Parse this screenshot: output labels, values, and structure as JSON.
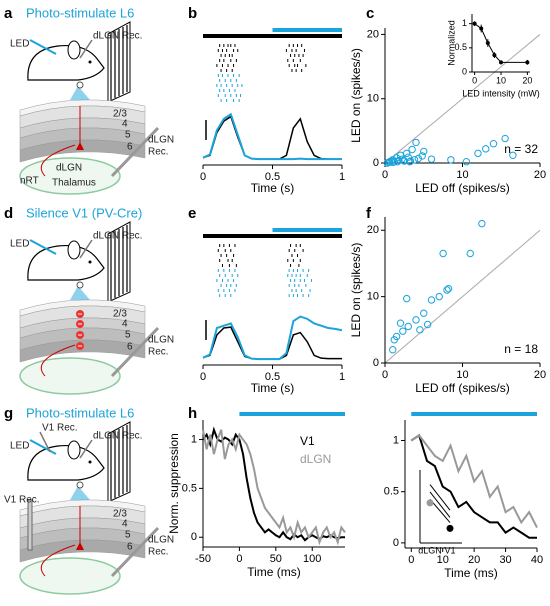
{
  "panels": {
    "a": {
      "label": "a",
      "title": "Photo-stimulate L6",
      "texts": [
        "LED",
        "dLGN Rec.",
        "2/3",
        "4",
        "5",
        "6",
        "dLGN",
        "Rec.",
        "dLGN",
        "nRT",
        "Thalamus"
      ]
    },
    "d": {
      "label": "d",
      "title": "Silence V1 (PV-Cre)",
      "texts": [
        "LED",
        "dLGN Rec.",
        "2/3",
        "4",
        "5",
        "6",
        "dLGN",
        "Rec."
      ]
    },
    "g": {
      "label": "g",
      "title": "Photo-stimulate L6",
      "texts": [
        "V1 Rec.",
        "LED",
        "dLGN Rec.",
        "V1 Rec.",
        "2/3",
        "4",
        "5",
        "6",
        "dLGN",
        "Rec."
      ]
    }
  },
  "chart_data": [
    {
      "type": "psth",
      "panel_label": "b",
      "xlabel": "Time (s)",
      "xlim": [
        0,
        1
      ],
      "xticks": [
        0,
        0.5,
        1
      ],
      "ylim": [
        0,
        1.05
      ],
      "stimulus": [
        0,
        1
      ],
      "led_on": [
        0.5,
        1
      ],
      "led_color": "#1ba3dc",
      "raster": [
        {
          "color": "#000000",
          "trials": [
            [
              0.12,
              0.15,
              0.18,
              0.2,
              0.23,
              0.62,
              0.65,
              0.68,
              0.71
            ],
            [
              0.11,
              0.14,
              0.17,
              0.22,
              0.25,
              0.6,
              0.64,
              0.67,
              0.73
            ],
            [
              0.13,
              0.16,
              0.19,
              0.21,
              0.63,
              0.66,
              0.69,
              0.72
            ],
            [
              0.12,
              0.15,
              0.2,
              0.24,
              0.61,
              0.65,
              0.7
            ],
            [
              0.1,
              0.14,
              0.18,
              0.22,
              0.62,
              0.66,
              0.68,
              0.74
            ],
            [
              0.13,
              0.17,
              0.21,
              0.64,
              0.67,
              0.71
            ]
          ]
        },
        {
          "color": "#1ba3dc",
          "trials": [
            [
              0.11,
              0.14,
              0.18,
              0.22,
              0.26
            ],
            [
              0.12,
              0.16,
              0.2,
              0.24
            ],
            [
              0.1,
              0.13,
              0.17,
              0.21,
              0.25,
              0.28
            ],
            [
              0.12,
              0.15,
              0.19,
              0.23
            ],
            [
              0.11,
              0.16,
              0.2,
              0.24,
              0.27
            ],
            [
              0.13,
              0.17,
              0.22,
              0.26
            ]
          ]
        }
      ],
      "x": [
        0,
        0.05,
        0.1,
        0.15,
        0.2,
        0.25,
        0.3,
        0.35,
        0.4,
        0.45,
        0.5,
        0.55,
        0.6,
        0.65,
        0.7,
        0.75,
        0.8,
        0.85,
        0.9,
        0.95,
        1
      ],
      "series": [
        {
          "color": "#000000",
          "values": [
            0.05,
            0.1,
            0.6,
            0.85,
            0.95,
            0.5,
            0.1,
            0.03,
            0.02,
            0.02,
            0.02,
            0.02,
            0.1,
            0.7,
            0.9,
            0.4,
            0.1,
            0.03,
            0.02,
            0.02,
            0.02
          ]
        },
        {
          "color": "#1ba3dc",
          "values": [
            0.05,
            0.12,
            0.65,
            0.9,
            1.0,
            0.55,
            0.1,
            0.03,
            0.02,
            0.02,
            0.02,
            0.02,
            0.02,
            0.02,
            0.03,
            0.02,
            0.02,
            0.02,
            0.02,
            0.02,
            0.02
          ]
        }
      ]
    },
    {
      "type": "scatter",
      "panel_label": "c",
      "xlabel": "LED off (spikes/s)",
      "ylabel": "LED on (spikes/s)",
      "xlim": [
        0,
        20
      ],
      "ylim": [
        0,
        21
      ],
      "xticks": [
        0,
        10,
        20
      ],
      "yticks": [
        0,
        10,
        20
      ],
      "color": "#1ba3dc",
      "unity_line": true,
      "annotation": "n = 32",
      "x": [
        0.5,
        0.8,
        1,
        1.2,
        1.5,
        1.8,
        2,
        2.2,
        2.5,
        2.8,
        3,
        3.2,
        3.5,
        3.8,
        4,
        4.3,
        4.8,
        5,
        1,
        1.6,
        2.4,
        3.3,
        0.3,
        0.6,
        8.5,
        10.5,
        12,
        13,
        14,
        15.5,
        16.5,
        6
      ],
      "values": [
        0.1,
        0.3,
        0.5,
        0.2,
        0.8,
        0.4,
        1.2,
        0.6,
        0.3,
        1.5,
        0.9,
        0.2,
        2.1,
        0.5,
        3.2,
        0.7,
        1.1,
        1.8,
        0.1,
        0.2,
        0.4,
        0.3,
        0,
        0.2,
        0.5,
        0.2,
        1.5,
        2.2,
        3,
        3.8,
        1.2,
        0.6
      ]
    },
    {
      "type": "line",
      "xlabel": "LED intensity (mW)",
      "ylabel": "Normalized",
      "xlim": [
        -1,
        21
      ],
      "ylim": [
        0,
        1.2
      ],
      "xticks": [
        0,
        10,
        20
      ],
      "yticks": [
        0,
        0.5,
        1
      ],
      "markers": true,
      "x": [
        0,
        2.5,
        5,
        7.5,
        10,
        20
      ],
      "series": [
        {
          "color": "#000000",
          "values": [
            1,
            0.9,
            0.6,
            0.35,
            0.2,
            0.2
          ],
          "errors": [
            0.05,
            0.08,
            0.08,
            0.06,
            0.04,
            0.05
          ]
        }
      ]
    },
    {
      "type": "psth",
      "panel_label": "e",
      "xlabel": "Time (s)",
      "xlim": [
        0,
        1
      ],
      "xticks": [
        0,
        0.5,
        1
      ],
      "ylim": [
        0,
        1.05
      ],
      "stimulus": [
        0,
        1
      ],
      "led_on": [
        0.5,
        1
      ],
      "led_color": "#1ba3dc",
      "raster": [
        {
          "color": "#000000",
          "trials": [
            [
              0.12,
              0.15,
              0.19,
              0.23,
              0.63,
              0.67,
              0.7
            ],
            [
              0.11,
              0.16,
              0.2,
              0.62,
              0.66,
              0.72
            ],
            [
              0.13,
              0.17,
              0.22,
              0.64,
              0.68
            ],
            [
              0.12,
              0.18,
              0.21,
              0.61,
              0.65,
              0.7
            ],
            [
              0.14,
              0.19,
              0.24,
              0.63,
              0.69
            ]
          ]
        },
        {
          "color": "#1ba3dc",
          "trials": [
            [
              0.11,
              0.15,
              0.19,
              0.23,
              0.62,
              0.65,
              0.68,
              0.72,
              0.76
            ],
            [
              0.12,
              0.16,
              0.21,
              0.25,
              0.61,
              0.64,
              0.67,
              0.7,
              0.75
            ],
            [
              0.1,
              0.14,
              0.18,
              0.22,
              0.63,
              0.66,
              0.7,
              0.73,
              0.78
            ],
            [
              0.13,
              0.17,
              0.2,
              0.24,
              0.62,
              0.66,
              0.69,
              0.74
            ],
            [
              0.11,
              0.15,
              0.19,
              0.23,
              0.64,
              0.67,
              0.71,
              0.77
            ],
            [
              0.12,
              0.16,
              0.2,
              0.62,
              0.65,
              0.68,
              0.72,
              0.76
            ]
          ]
        }
      ],
      "x": [
        0,
        0.05,
        0.1,
        0.15,
        0.2,
        0.25,
        0.3,
        0.35,
        0.4,
        0.45,
        0.5,
        0.55,
        0.6,
        0.65,
        0.7,
        0.75,
        0.8,
        0.85,
        0.9,
        0.95,
        1
      ],
      "series": [
        {
          "color": "#000000",
          "values": [
            0.05,
            0.1,
            0.55,
            0.7,
            0.72,
            0.4,
            0.08,
            0.03,
            0.02,
            0.02,
            0.02,
            0.02,
            0.1,
            0.55,
            0.6,
            0.4,
            0.1,
            0.04,
            0.03,
            0.03,
            0.03
          ]
        },
        {
          "color": "#1ba3dc",
          "values": [
            0.05,
            0.12,
            0.7,
            0.75,
            0.8,
            0.5,
            0.1,
            0.03,
            0.02,
            0.02,
            0.02,
            0.02,
            0.15,
            0.85,
            0.95,
            0.9,
            0.8,
            0.75,
            0.7,
            0.68,
            0.65
          ]
        }
      ]
    },
    {
      "type": "scatter",
      "panel_label": "f",
      "xlabel": "LED off (spikes/s)",
      "ylabel": "LED on (spikes/s)",
      "xlim": [
        0,
        20
      ],
      "ylim": [
        0,
        22
      ],
      "xticks": [
        0,
        10,
        20
      ],
      "yticks": [
        0,
        10,
        20
      ],
      "color": "#1ba3dc",
      "unity_line": true,
      "annotation": "n = 18",
      "x": [
        1,
        1.2,
        1.5,
        2,
        2.3,
        2.8,
        3,
        4,
        4.5,
        5,
        5.5,
        6,
        7,
        7.5,
        8,
        8.2,
        11,
        12.5
      ],
      "values": [
        2,
        3.5,
        4,
        6,
        4.8,
        9.7,
        5.5,
        6.5,
        5,
        7.5,
        5.8,
        9.5,
        10,
        16.5,
        11,
        11.2,
        16.5,
        21
      ]
    },
    {
      "type": "line",
      "panel_label": "h",
      "xlabel": "Time (ms)",
      "ylabel": "Norm. suppression",
      "xlim": [
        -50,
        145
      ],
      "ylim": [
        -0.1,
        1.2
      ],
      "xticks": [
        -50,
        0,
        50,
        100
      ],
      "yticks": [
        0,
        0.5,
        1
      ],
      "led_on": [
        0,
        145
      ],
      "led_color": "#1ba3dc",
      "legend": true,
      "x": [
        -50,
        -45,
        -40,
        -35,
        -30,
        -25,
        -20,
        -15,
        -10,
        -5,
        0,
        5,
        10,
        15,
        20,
        25,
        30,
        35,
        40,
        45,
        50,
        55,
        60,
        65,
        70,
        75,
        80,
        85,
        90,
        95,
        100,
        105,
        110,
        115,
        120,
        125,
        130,
        135,
        140,
        145
      ],
      "series": [
        {
          "name": "V1",
          "color": "#000000",
          "values": [
            1.0,
            1.05,
            0.95,
            1.1,
            1.0,
            0.98,
            1.02,
            1.0,
            0.95,
            1.05,
            1.0,
            0.85,
            0.6,
            0.4,
            0.25,
            0.15,
            0.1,
            0.05,
            0.08,
            0.05,
            0.02,
            0,
            0.05,
            0.0,
            -0.02,
            0.03,
            0.0,
            0.02,
            -0.03,
            0.0,
            0.02,
            0.0,
            -0.02,
            0.01,
            0.0,
            0.02,
            0.0,
            -0.01,
            0.0,
            0.0
          ]
        },
        {
          "name": "dLGN",
          "color": "#999999",
          "values": [
            1.1,
            0.9,
            1.05,
            0.85,
            1.0,
            1.1,
            0.8,
            0.95,
            1.0,
            0.9,
            1.05,
            1.0,
            0.95,
            0.85,
            0.7,
            0.5,
            0.4,
            0.3,
            0.25,
            0.2,
            0.15,
            0.1,
            0.2,
            0.05,
            0.1,
            0.0,
            0.15,
            0.05,
            0.1,
            0.0,
            0.05,
            0.1,
            -0.05,
            0.05,
            0.1,
            0.0,
            0.05,
            -0.05,
            0.1,
            0.05
          ]
        }
      ]
    },
    {
      "type": "line",
      "xlabel": "Time (ms)",
      "xlim": [
        -2,
        40
      ],
      "ylim": [
        -0.05,
        1.2
      ],
      "xticks": [
        0,
        10,
        20,
        30,
        40
      ],
      "yticks": [
        0,
        0.5,
        1
      ],
      "led_on": [
        0,
        40
      ],
      "led_color": "#1ba3dc",
      "x": [
        0,
        2.5,
        5,
        7.5,
        10,
        12.5,
        15,
        17.5,
        20,
        22.5,
        25,
        27.5,
        30,
        32.5,
        35,
        37.5,
        40
      ],
      "series": [
        {
          "color": "#000000",
          "values": [
            1,
            1.05,
            0.8,
            0.75,
            0.55,
            0.5,
            0.35,
            0.4,
            0.3,
            0.25,
            0.2,
            0.2,
            0.1,
            0.15,
            0.1,
            0.05,
            0.05
          ]
        },
        {
          "color": "#999999",
          "values": [
            1,
            1.05,
            0.95,
            0.85,
            0.8,
            0.95,
            0.7,
            0.85,
            0.6,
            0.7,
            0.45,
            0.55,
            0.3,
            0.35,
            0.2,
            0.3,
            0.15
          ]
        }
      ],
      "inset": {
        "categories": [
          "dLGN",
          "V1"
        ],
        "values": [
          0.55,
          0.2
        ],
        "colors": [
          "#999999",
          "#000000"
        ],
        "ylim": [
          0,
          1
        ],
        "pairs": [
          [
            0.8,
            0.45
          ],
          [
            0.7,
            0.35
          ],
          [
            0.6,
            0.28
          ]
        ]
      }
    }
  ]
}
